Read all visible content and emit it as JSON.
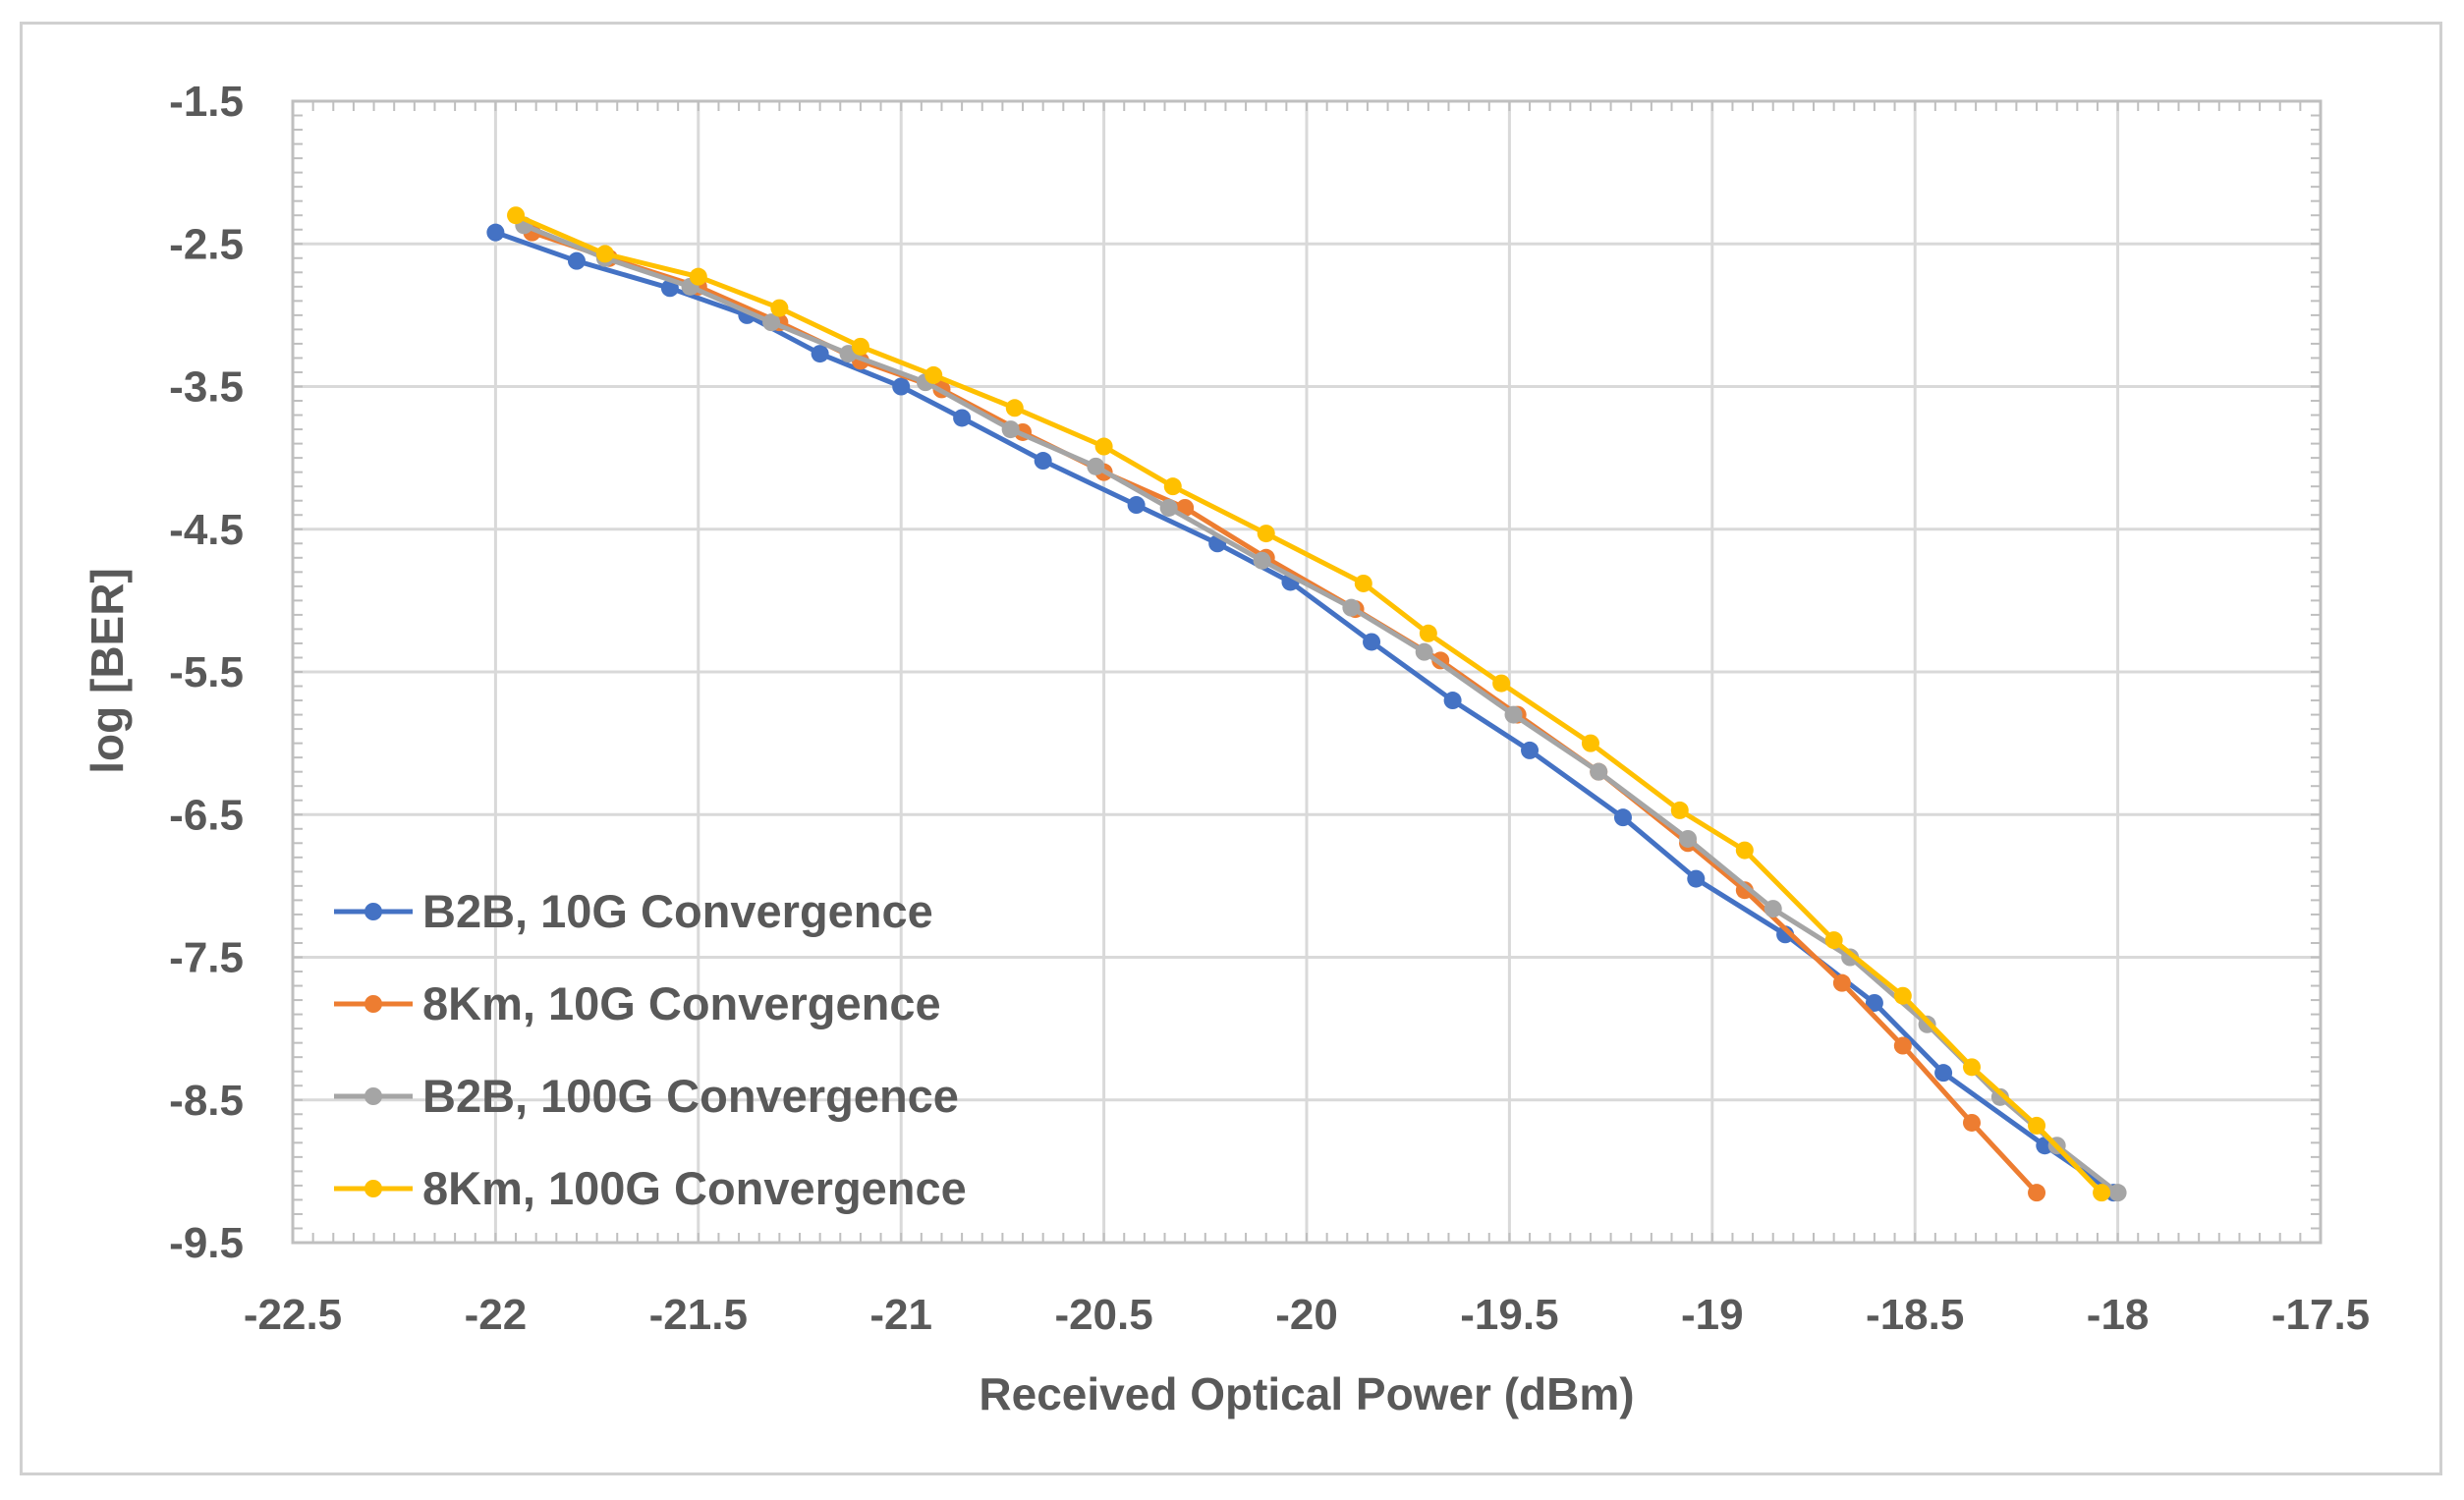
{
  "chart_data": {
    "type": "line",
    "title": "",
    "xlabel": "Received Optical Power (dBm)",
    "ylabel": "log [BER]",
    "xlim": [
      -22.5,
      -17.5
    ],
    "ylim": [
      -9.5,
      -1.5
    ],
    "xticks": [
      -22.5,
      -22,
      -21.5,
      -21,
      -20.5,
      -20,
      -19.5,
      -19,
      -18.5,
      -18,
      -17.5
    ],
    "yticks": [
      -1.5,
      -2.5,
      -3.5,
      -4.5,
      -5.5,
      -6.5,
      -7.5,
      -8.5,
      -9.5
    ],
    "xtick_labels": [
      "-22.5",
      "-22",
      "-21.5",
      "-21",
      "-20.5",
      "-20",
      "-19.5",
      "-19",
      "-18.5",
      "-18",
      "-17.5"
    ],
    "ytick_labels": [
      "-1.5",
      "-2.5",
      "-3.5",
      "-4.5",
      "-5.5",
      "-6.5",
      "-7.5",
      "-8.5",
      "-9.5"
    ],
    "grid": true,
    "legend_position": "bottom-left",
    "series": [
      {
        "name": "B2B, 10G Convergence",
        "color": "#4472C4",
        "x": [
          -22.0,
          -21.8,
          -21.57,
          -21.38,
          -21.2,
          -21.0,
          -20.85,
          -20.65,
          -20.42,
          -20.22,
          -20.04,
          -19.84,
          -19.64,
          -19.45,
          -19.22,
          -19.04,
          -18.82,
          -18.6,
          -18.43,
          -18.18,
          -18.01
        ],
        "y": [
          -2.42,
          -2.62,
          -2.81,
          -3.0,
          -3.27,
          -3.5,
          -3.72,
          -4.02,
          -4.33,
          -4.6,
          -4.87,
          -5.29,
          -5.7,
          -6.05,
          -6.52,
          -6.95,
          -7.34,
          -7.82,
          -8.31,
          -8.82,
          -9.15
        ]
      },
      {
        "name": "8Km, 10G Convergence",
        "color": "#ED7D31",
        "x": [
          -21.91,
          -21.72,
          -21.5,
          -21.3,
          -21.1,
          -20.9,
          -20.7,
          -20.5,
          -20.3,
          -20.1,
          -19.88,
          -19.67,
          -19.48,
          -19.28,
          -19.06,
          -18.92,
          -18.68,
          -18.53,
          -18.36,
          -18.2
        ],
        "y": [
          -2.42,
          -2.6,
          -2.8,
          -3.05,
          -3.32,
          -3.52,
          -3.82,
          -4.1,
          -4.35,
          -4.7,
          -5.06,
          -5.42,
          -5.8,
          -6.2,
          -6.7,
          -7.03,
          -7.68,
          -8.12,
          -8.66,
          -9.15
        ]
      },
      {
        "name": "B2B, 100G Convergence",
        "color": "#A5A5A5",
        "x": [
          -21.93,
          -21.73,
          -21.52,
          -21.32,
          -21.13,
          -20.94,
          -20.73,
          -20.52,
          -20.34,
          -20.11,
          -19.89,
          -19.71,
          -19.49,
          -19.28,
          -19.06,
          -18.85,
          -18.66,
          -18.47,
          -18.29,
          -18.15,
          -18.0
        ],
        "y": [
          -2.37,
          -2.6,
          -2.8,
          -3.05,
          -3.27,
          -3.47,
          -3.8,
          -4.06,
          -4.35,
          -4.72,
          -5.05,
          -5.36,
          -5.8,
          -6.2,
          -6.67,
          -7.16,
          -7.5,
          -7.97,
          -8.48,
          -8.82,
          -9.15
        ]
      },
      {
        "name": "8Km, 100G Convergence",
        "color": "#FFC000",
        "x": [
          -21.95,
          -21.73,
          -21.5,
          -21.3,
          -21.1,
          -20.92,
          -20.72,
          -20.5,
          -20.33,
          -20.1,
          -19.86,
          -19.7,
          -19.52,
          -19.3,
          -19.08,
          -18.92,
          -18.7,
          -18.53,
          -18.36,
          -18.2,
          -18.04
        ],
        "y": [
          -2.3,
          -2.57,
          -2.73,
          -2.95,
          -3.22,
          -3.42,
          -3.65,
          -3.92,
          -4.2,
          -4.53,
          -4.88,
          -5.23,
          -5.58,
          -6.0,
          -6.47,
          -6.75,
          -7.38,
          -7.77,
          -8.27,
          -8.68,
          -9.15
        ]
      }
    ]
  }
}
